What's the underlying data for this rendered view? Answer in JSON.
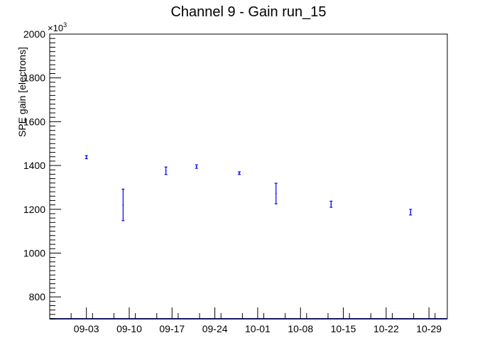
{
  "chart_data": {
    "type": "scatter",
    "title": "Channel 9 - Gain run_15",
    "xlabel": "",
    "ylabel": "SPE gain [electrons]",
    "y_multiplier_label": "×10",
    "y_multiplier_exponent": "3",
    "xlim": [
      "2024-08-28",
      "2024-11-01"
    ],
    "ylim": [
      700,
      2000
    ],
    "x_ticks": [
      "09-03",
      "09-10",
      "09-17",
      "09-24",
      "10-01",
      "10-08",
      "10-15",
      "10-22",
      "10-29"
    ],
    "x_tick_dates": [
      "2024-09-03",
      "2024-09-10",
      "2024-09-17",
      "2024-09-24",
      "2024-10-01",
      "2024-10-08",
      "2024-10-15",
      "2024-10-22",
      "2024-10-29"
    ],
    "y_ticks": [
      800,
      1000,
      1200,
      1400,
      1600,
      1800,
      2000
    ],
    "grid": false,
    "marker_color": "#0000ff",
    "series": [
      {
        "points": [
          {
            "x": "2024-09-03",
            "y": 1438,
            "err": 7
          },
          {
            "x": "2024-09-09",
            "y": 1220,
            "err": 72
          },
          {
            "x": "2024-09-16",
            "y": 1376,
            "err": 17
          },
          {
            "x": "2024-09-21",
            "y": 1395,
            "err": 8
          },
          {
            "x": "2024-09-28",
            "y": 1365,
            "err": 6
          },
          {
            "x": "2024-10-04",
            "y": 1272,
            "err": 47
          },
          {
            "x": "2024-10-13",
            "y": 1223,
            "err": 14
          },
          {
            "x": "2024-10-26",
            "y": 1187,
            "err": 13
          }
        ]
      }
    ]
  }
}
